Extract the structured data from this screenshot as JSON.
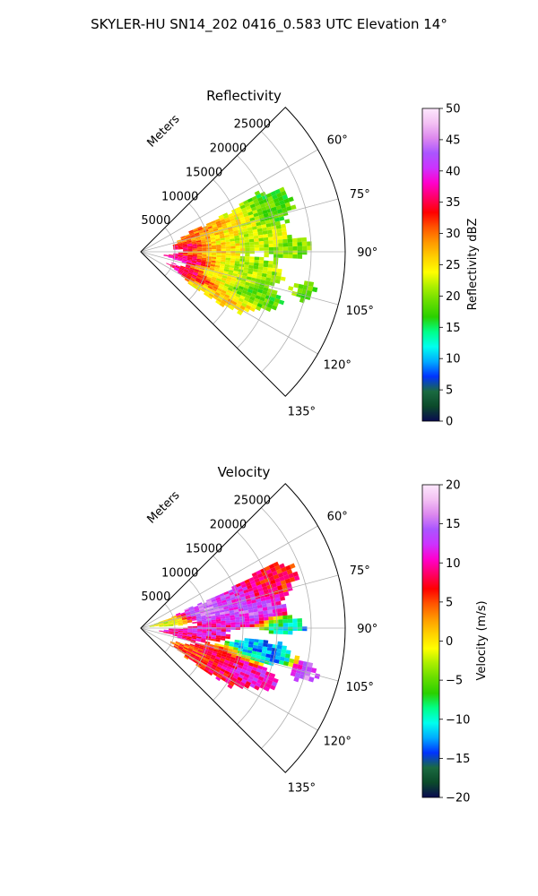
{
  "figure": {
    "suptitle": "SKYLER-HU  SN14_202  0416_0.583 UTC Elevation 14°"
  },
  "colors": {
    "background": "#ffffff",
    "grid": "#b0b0b0",
    "axis": "#000000"
  },
  "chart_data": [
    {
      "type": "heatmap",
      "projection": "polar-sector",
      "title": "Reflectivity",
      "radial_label": "Meters",
      "r_ticks": [
        "5000",
        "10000",
        "15000",
        "20000",
        "25000"
      ],
      "r_tick_values": [
        5000,
        10000,
        15000,
        20000,
        25000
      ],
      "rlim": [
        0,
        30000
      ],
      "theta_ticks": [
        "60°",
        "75°",
        "90°",
        "105°",
        "120°",
        "135°"
      ],
      "theta_tick_values": [
        60,
        75,
        90,
        105,
        120,
        135
      ],
      "theta_range": [
        45,
        135
      ],
      "grid": true,
      "colorbar": {
        "label": "Reflectivity dBZ",
        "ticks": [
          "0",
          "5",
          "10",
          "15",
          "20",
          "25",
          "30",
          "35",
          "40",
          "45",
          "50"
        ],
        "range": [
          0,
          50
        ],
        "stops": [
          "#0a0a50",
          "#0b4a2a",
          "#1a6a40",
          "#0033ff",
          "#00aaff",
          "#00ffee",
          "#00ff88",
          "#2ad000",
          "#66dd00",
          "#aaee00",
          "#ffff00",
          "#ffd000",
          "#ff9900",
          "#ff5500",
          "#ff0000",
          "#ff0066",
          "#ff00cc",
          "#cc33ff",
          "#aa55ff",
          "#dd88ee",
          "#f3c0f3",
          "#fde8fd"
        ]
      },
      "blobs": [
        {
          "az": 70,
          "r": 19000,
          "dr": 4000,
          "da": 6,
          "v": 18
        },
        {
          "az": 72,
          "r": 14000,
          "dr": 3000,
          "da": 5,
          "v": 26
        },
        {
          "az": 74,
          "r": 9000,
          "dr": 3000,
          "da": 6,
          "v": 30
        },
        {
          "az": 78,
          "r": 12000,
          "dr": 3500,
          "da": 5,
          "v": 24
        },
        {
          "az": 82,
          "r": 7000,
          "dr": 2000,
          "da": 4,
          "v": 36
        },
        {
          "az": 83,
          "r": 17000,
          "dr": 4000,
          "da": 5,
          "v": 22
        },
        {
          "az": 86,
          "r": 12000,
          "dr": 3000,
          "da": 3,
          "v": 27
        },
        {
          "az": 88,
          "r": 22000,
          "dr": 3000,
          "da": 3,
          "v": 20
        },
        {
          "az": 93,
          "r": 10000,
          "dr": 3000,
          "da": 4,
          "v": 25
        },
        {
          "az": 97,
          "r": 7000,
          "dr": 3000,
          "da": 5,
          "v": 37
        },
        {
          "az": 99,
          "r": 16000,
          "dr": 4000,
          "da": 5,
          "v": 21
        },
        {
          "az": 103,
          "r": 25000,
          "dr": 2000,
          "da": 4,
          "v": 19
        },
        {
          "az": 107,
          "r": 12000,
          "dr": 3000,
          "da": 5,
          "v": 24
        },
        {
          "az": 110,
          "r": 17000,
          "dr": 4000,
          "da": 4,
          "v": 18
        },
        {
          "az": 114,
          "r": 8000,
          "dr": 3000,
          "da": 6,
          "v": 36
        },
        {
          "az": 118,
          "r": 14000,
          "dr": 3500,
          "da": 5,
          "v": 26
        },
        {
          "az": 121,
          "r": 10000,
          "dr": 2500,
          "da": 4,
          "v": 23
        }
      ]
    },
    {
      "type": "heatmap",
      "projection": "polar-sector",
      "title": "Velocity",
      "radial_label": "Meters",
      "r_ticks": [
        "5000",
        "10000",
        "15000",
        "20000",
        "25000"
      ],
      "r_tick_values": [
        5000,
        10000,
        15000,
        20000,
        25000
      ],
      "rlim": [
        0,
        30000
      ],
      "theta_ticks": [
        "60°",
        "75°",
        "90°",
        "105°",
        "120°",
        "135°"
      ],
      "theta_tick_values": [
        60,
        75,
        90,
        105,
        120,
        135
      ],
      "theta_range": [
        45,
        135
      ],
      "grid": true,
      "colorbar": {
        "label": "Velocity (m/s)",
        "ticks": [
          "−20",
          "−15",
          "−10",
          "−5",
          "0",
          "5",
          "10",
          "15",
          "20"
        ],
        "range": [
          -20,
          20
        ],
        "stops": [
          "#0a0a50",
          "#0b4a2a",
          "#1a6a40",
          "#0033ff",
          "#00aaff",
          "#00ffee",
          "#00ff88",
          "#2ad000",
          "#66dd00",
          "#aaee00",
          "#ffff00",
          "#ffd000",
          "#ff9900",
          "#ff5500",
          "#ff0000",
          "#ff0066",
          "#ff00cc",
          "#cc33ff",
          "#aa55ff",
          "#dd88ee",
          "#f3c0f3",
          "#fde8fd"
        ]
      },
      "blobs": [
        {
          "az": 70,
          "r": 20000,
          "dr": 4000,
          "da": 6,
          "v": 7
        },
        {
          "az": 72,
          "r": 14000,
          "dr": 3000,
          "da": 5,
          "v": 13
        },
        {
          "az": 74,
          "r": 9000,
          "dr": 3000,
          "da": 6,
          "v": 15
        },
        {
          "az": 78,
          "r": 4000,
          "dr": 2500,
          "da": 6,
          "v": -2
        },
        {
          "az": 82,
          "r": 16000,
          "dr": 4000,
          "da": 5,
          "v": 14
        },
        {
          "az": 86,
          "r": 12000,
          "dr": 3000,
          "da": 3,
          "v": 10
        },
        {
          "az": 88,
          "r": 21000,
          "dr": 3000,
          "da": 3,
          "v": -11
        },
        {
          "az": 93,
          "r": 9000,
          "dr": 3000,
          "da": 4,
          "v": 11
        },
        {
          "az": 97,
          "r": 6000,
          "dr": 3000,
          "da": 5,
          "v": 9
        },
        {
          "az": 100,
          "r": 18000,
          "dr": 4000,
          "da": 4,
          "v": -12
        },
        {
          "az": 104,
          "r": 25000,
          "dr": 2000,
          "da": 4,
          "v": 15
        },
        {
          "az": 108,
          "r": 12000,
          "dr": 3000,
          "da": 5,
          "v": 7
        },
        {
          "az": 112,
          "r": 17000,
          "dr": 4000,
          "da": 4,
          "v": 11
        },
        {
          "az": 116,
          "r": 8000,
          "dr": 3000,
          "da": 6,
          "v": 5
        },
        {
          "az": 120,
          "r": 13000,
          "dr": 3500,
          "da": 5,
          "v": 8
        }
      ]
    }
  ]
}
